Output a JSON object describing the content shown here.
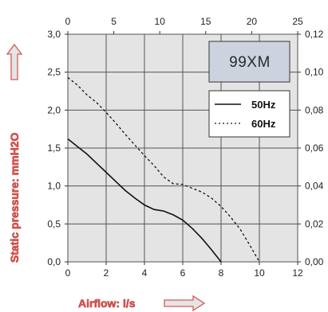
{
  "chart_data": {
    "type": "line",
    "model_label": "99XM",
    "xlabel": "Airflow: l/s",
    "ylabel": "Static pressure: mmH2O",
    "xlim": [
      0,
      12
    ],
    "ylim": [
      0,
      3
    ],
    "x_ticks": [
      "0",
      "2",
      "4",
      "6",
      "8",
      "10",
      "12"
    ],
    "y_ticks": [
      "0,0",
      "0,5",
      "1,0",
      "1,5",
      "2,0",
      "2,5",
      "3,0"
    ],
    "top_axis": {
      "lim": [
        0,
        25
      ],
      "ticks": [
        "0",
        "5",
        "10",
        "15",
        "20",
        "25"
      ]
    },
    "right_axis": {
      "lim": [
        0,
        0.12
      ],
      "ticks": [
        "0,00",
        "0,02",
        "0,04",
        "0,06",
        "0,08",
        "0,10",
        "0,12"
      ]
    },
    "grid": true,
    "legend_position": "top-right",
    "colors": {
      "background": "#e4e4e4",
      "grid": "#555555",
      "curve": "#111111",
      "model_box": "#ccd3df",
      "axis_label": "#e05a57"
    },
    "series": [
      {
        "name": "50Hz",
        "style": "solid",
        "x": [
          0,
          0.5,
          1,
          1.5,
          2,
          2.5,
          3,
          3.5,
          4,
          4.5,
          5,
          5.5,
          6,
          6.5,
          7,
          7.5,
          8
        ],
        "y": [
          1.62,
          1.52,
          1.42,
          1.3,
          1.18,
          1.06,
          0.94,
          0.84,
          0.75,
          0.69,
          0.67,
          0.62,
          0.55,
          0.44,
          0.31,
          0.16,
          0.0
        ]
      },
      {
        "name": "60Hz",
        "style": "dotted",
        "x": [
          0,
          0.5,
          1,
          1.5,
          2,
          2.5,
          3,
          3.5,
          4,
          4.5,
          5,
          5.5,
          6,
          6.5,
          7,
          7.5,
          8,
          8.5,
          9,
          9.5,
          10
        ],
        "y": [
          2.43,
          2.33,
          2.2,
          2.1,
          1.97,
          1.83,
          1.68,
          1.54,
          1.4,
          1.27,
          1.12,
          1.03,
          1.02,
          0.97,
          0.92,
          0.84,
          0.73,
          0.59,
          0.43,
          0.22,
          0.0
        ]
      }
    ]
  }
}
